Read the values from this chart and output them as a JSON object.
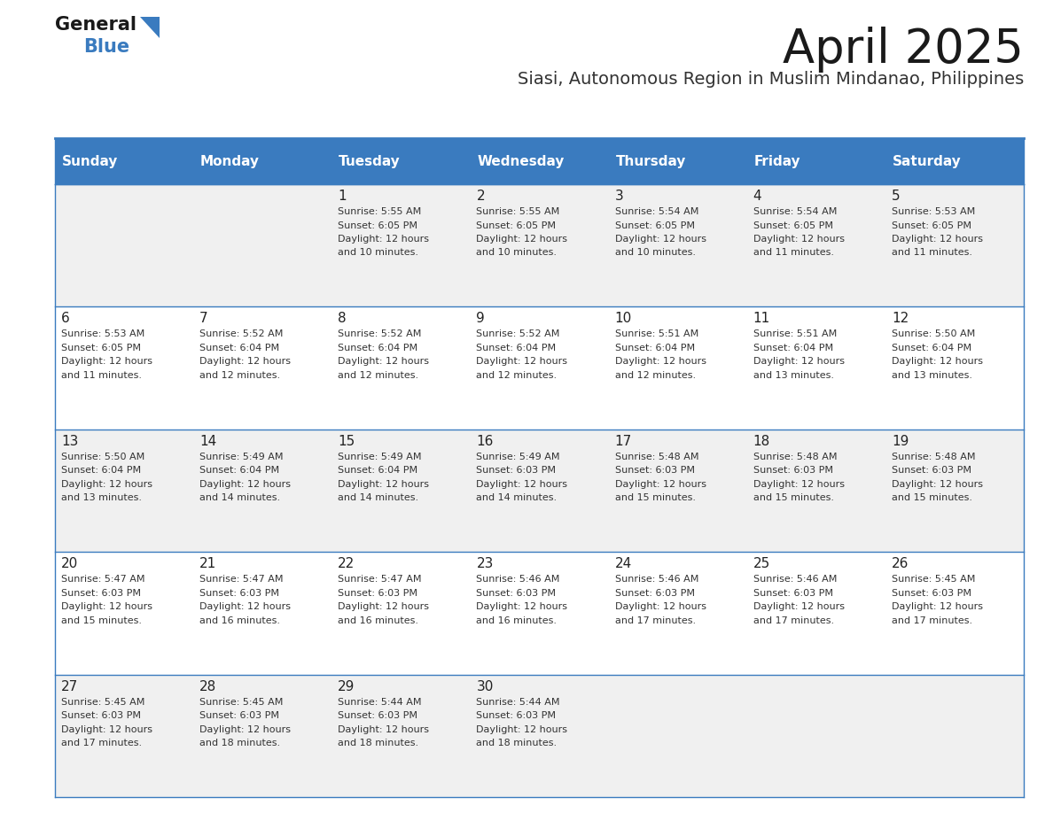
{
  "title": "April 2025",
  "subtitle": "Siasi, Autonomous Region in Muslim Mindanao, Philippines",
  "header_bg": "#3a7bbf",
  "header_text": "#ffffff",
  "row_bg_odd": "#f0f0f0",
  "row_bg_even": "#ffffff",
  "day_names": [
    "Sunday",
    "Monday",
    "Tuesday",
    "Wednesday",
    "Thursday",
    "Friday",
    "Saturday"
  ],
  "cell_border_color": "#3a7bbf",
  "day_num_color": "#222222",
  "info_color": "#333333",
  "calendar": [
    [
      null,
      null,
      {
        "day": 1,
        "sunrise": "5:55 AM",
        "sunset": "6:05 PM",
        "hours": 12,
        "minutes": 10
      },
      {
        "day": 2,
        "sunrise": "5:55 AM",
        "sunset": "6:05 PM",
        "hours": 12,
        "minutes": 10
      },
      {
        "day": 3,
        "sunrise": "5:54 AM",
        "sunset": "6:05 PM",
        "hours": 12,
        "minutes": 10
      },
      {
        "day": 4,
        "sunrise": "5:54 AM",
        "sunset": "6:05 PM",
        "hours": 12,
        "minutes": 11
      },
      {
        "day": 5,
        "sunrise": "5:53 AM",
        "sunset": "6:05 PM",
        "hours": 12,
        "minutes": 11
      }
    ],
    [
      {
        "day": 6,
        "sunrise": "5:53 AM",
        "sunset": "6:05 PM",
        "hours": 12,
        "minutes": 11
      },
      {
        "day": 7,
        "sunrise": "5:52 AM",
        "sunset": "6:04 PM",
        "hours": 12,
        "minutes": 12
      },
      {
        "day": 8,
        "sunrise": "5:52 AM",
        "sunset": "6:04 PM",
        "hours": 12,
        "minutes": 12
      },
      {
        "day": 9,
        "sunrise": "5:52 AM",
        "sunset": "6:04 PM",
        "hours": 12,
        "minutes": 12
      },
      {
        "day": 10,
        "sunrise": "5:51 AM",
        "sunset": "6:04 PM",
        "hours": 12,
        "minutes": 12
      },
      {
        "day": 11,
        "sunrise": "5:51 AM",
        "sunset": "6:04 PM",
        "hours": 12,
        "minutes": 13
      },
      {
        "day": 12,
        "sunrise": "5:50 AM",
        "sunset": "6:04 PM",
        "hours": 12,
        "minutes": 13
      }
    ],
    [
      {
        "day": 13,
        "sunrise": "5:50 AM",
        "sunset": "6:04 PM",
        "hours": 12,
        "minutes": 13
      },
      {
        "day": 14,
        "sunrise": "5:49 AM",
        "sunset": "6:04 PM",
        "hours": 12,
        "minutes": 14
      },
      {
        "day": 15,
        "sunrise": "5:49 AM",
        "sunset": "6:04 PM",
        "hours": 12,
        "minutes": 14
      },
      {
        "day": 16,
        "sunrise": "5:49 AM",
        "sunset": "6:03 PM",
        "hours": 12,
        "minutes": 14
      },
      {
        "day": 17,
        "sunrise": "5:48 AM",
        "sunset": "6:03 PM",
        "hours": 12,
        "minutes": 15
      },
      {
        "day": 18,
        "sunrise": "5:48 AM",
        "sunset": "6:03 PM",
        "hours": 12,
        "minutes": 15
      },
      {
        "day": 19,
        "sunrise": "5:48 AM",
        "sunset": "6:03 PM",
        "hours": 12,
        "minutes": 15
      }
    ],
    [
      {
        "day": 20,
        "sunrise": "5:47 AM",
        "sunset": "6:03 PM",
        "hours": 12,
        "minutes": 15
      },
      {
        "day": 21,
        "sunrise": "5:47 AM",
        "sunset": "6:03 PM",
        "hours": 12,
        "minutes": 16
      },
      {
        "day": 22,
        "sunrise": "5:47 AM",
        "sunset": "6:03 PM",
        "hours": 12,
        "minutes": 16
      },
      {
        "day": 23,
        "sunrise": "5:46 AM",
        "sunset": "6:03 PM",
        "hours": 12,
        "minutes": 16
      },
      {
        "day": 24,
        "sunrise": "5:46 AM",
        "sunset": "6:03 PM",
        "hours": 12,
        "minutes": 17
      },
      {
        "day": 25,
        "sunrise": "5:46 AM",
        "sunset": "6:03 PM",
        "hours": 12,
        "minutes": 17
      },
      {
        "day": 26,
        "sunrise": "5:45 AM",
        "sunset": "6:03 PM",
        "hours": 12,
        "minutes": 17
      }
    ],
    [
      {
        "day": 27,
        "sunrise": "5:45 AM",
        "sunset": "6:03 PM",
        "hours": 12,
        "minutes": 17
      },
      {
        "day": 28,
        "sunrise": "5:45 AM",
        "sunset": "6:03 PM",
        "hours": 12,
        "minutes": 18
      },
      {
        "day": 29,
        "sunrise": "5:44 AM",
        "sunset": "6:03 PM",
        "hours": 12,
        "minutes": 18
      },
      {
        "day": 30,
        "sunrise": "5:44 AM",
        "sunset": "6:03 PM",
        "hours": 12,
        "minutes": 18
      },
      null,
      null,
      null
    ]
  ],
  "logo_general_color": "#1a1a1a",
  "logo_blue_color": "#3a7bbf",
  "logo_triangle_color": "#3a7bbf"
}
